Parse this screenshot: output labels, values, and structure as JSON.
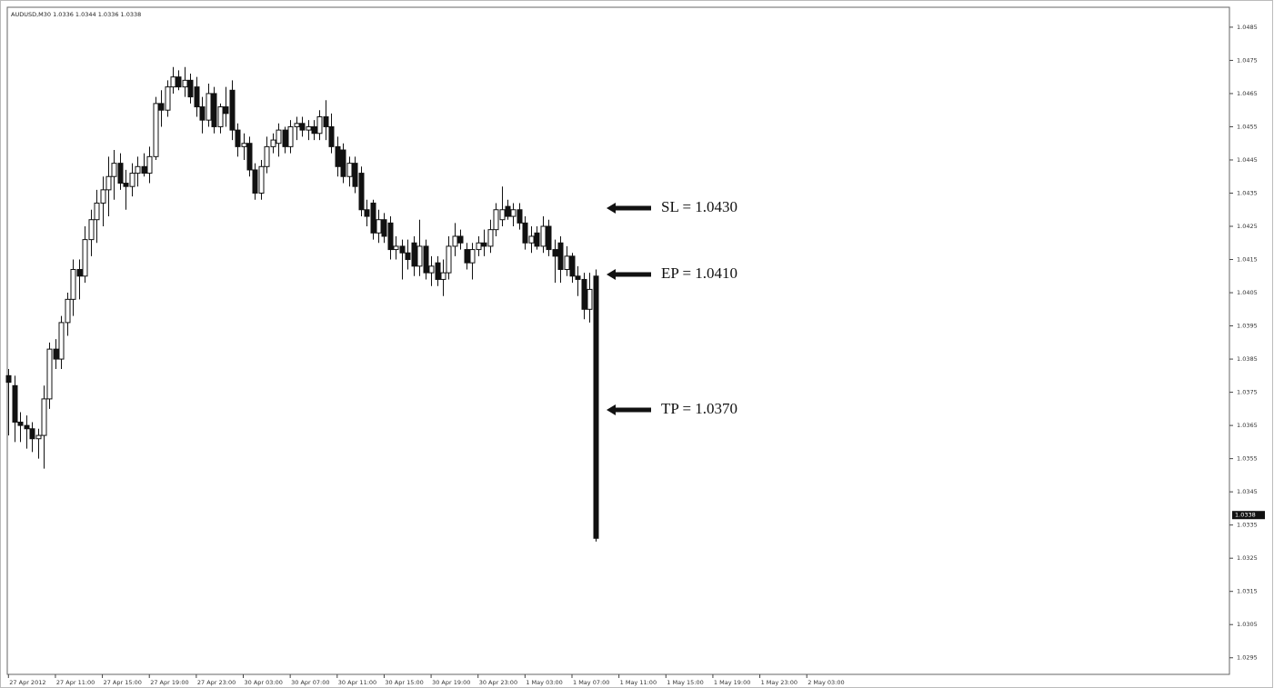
{
  "chart_data": {
    "type": "candlestick",
    "title": "AUDUSD,M30 1.0336 1.0344 1.0336 1.0338",
    "open": [
      1.038,
      1.0377,
      1.0366,
      1.0365,
      1.0364,
      1.0361,
      1.0362,
      1.0373,
      1.0388,
      1.0385,
      1.0396,
      1.0403,
      1.0412,
      1.041,
      1.0421,
      1.0427,
      1.0432,
      1.0436,
      1.044,
      1.0444,
      1.0438,
      1.0437,
      1.0441,
      1.0443,
      1.0441,
      1.0446,
      1.0462,
      1.046,
      1.0467,
      1.047,
      1.0467,
      1.0469,
      1.0467,
      1.0461,
      1.0457,
      1.0465,
      1.0455,
      1.0461,
      1.0466,
      1.0454,
      1.0449,
      1.045,
      1.0442,
      1.0435,
      1.0443,
      1.0449,
      1.045,
      1.0454,
      1.0449,
      1.0455,
      1.0456,
      1.0454,
      1.0455,
      1.0453,
      1.0458,
      1.0455,
      1.0449,
      1.0448,
      1.044,
      1.0444,
      1.0441,
      1.043,
      1.0432,
      1.0423,
      1.0427,
      1.0426,
      1.0418,
      1.0419,
      1.0417,
      1.042,
      1.0413,
      1.0419,
      1.0411,
      1.0414,
      1.0409,
      1.0411,
      1.0419,
      1.0422,
      1.0418,
      1.0414,
      1.0418,
      1.042,
      1.0419,
      1.0424,
      1.0427,
      1.0431,
      1.0428,
      1.043,
      1.0426,
      1.042,
      1.0423,
      1.0419,
      1.0425,
      1.0418,
      1.042,
      1.0412,
      1.0416,
      1.041,
      1.0409,
      1.04,
      1.041
    ],
    "high": [
      1.0382,
      1.038,
      1.0369,
      1.0368,
      1.0366,
      1.0364,
      1.0377,
      1.039,
      1.0391,
      1.0398,
      1.0405,
      1.0415,
      1.0415,
      1.0425,
      1.043,
      1.0436,
      1.044,
      1.0446,
      1.0448,
      1.0447,
      1.0442,
      1.0444,
      1.0446,
      1.0447,
      1.0449,
      1.0464,
      1.0466,
      1.0469,
      1.0473,
      1.0472,
      1.0473,
      1.0471,
      1.047,
      1.0464,
      1.0468,
      1.0467,
      1.0462,
      1.0467,
      1.0469,
      1.0456,
      1.0453,
      1.0452,
      1.0444,
      1.0445,
      1.0452,
      1.0453,
      1.0456,
      1.0455,
      1.0457,
      1.0458,
      1.0458,
      1.0457,
      1.0457,
      1.046,
      1.0463,
      1.0459,
      1.0452,
      1.045,
      1.0446,
      1.0446,
      1.0443,
      1.0433,
      1.0433,
      1.043,
      1.0429,
      1.0428,
      1.0422,
      1.0421,
      1.0421,
      1.0422,
      1.0427,
      1.0421,
      1.0416,
      1.0416,
      1.0415,
      1.0422,
      1.0426,
      1.0424,
      1.042,
      1.042,
      1.0422,
      1.0424,
      1.0427,
      1.0432,
      1.0437,
      1.0433,
      1.0432,
      1.0432,
      1.0428,
      1.0425,
      1.0425,
      1.0428,
      1.0427,
      1.0421,
      1.0422,
      1.0419,
      1.0417,
      1.0413,
      1.0411,
      1.0411,
      1.0412
    ],
    "low": [
      1.0362,
      1.036,
      1.036,
      1.0358,
      1.0357,
      1.0355,
      1.0352,
      1.037,
      1.0382,
      1.0382,
      1.0392,
      1.0398,
      1.0403,
      1.0408,
      1.0416,
      1.042,
      1.0425,
      1.0428,
      1.0433,
      1.0436,
      1.043,
      1.0434,
      1.0437,
      1.044,
      1.0438,
      1.0445,
      1.0455,
      1.0458,
      1.0465,
      1.0466,
      1.0464,
      1.0462,
      1.0458,
      1.0453,
      1.0455,
      1.0453,
      1.0453,
      1.0455,
      1.0451,
      1.0446,
      1.0445,
      1.044,
      1.0433,
      1.0433,
      1.0441,
      1.0447,
      1.0446,
      1.0447,
      1.0447,
      1.0451,
      1.0452,
      1.0451,
      1.0451,
      1.0451,
      1.0451,
      1.0447,
      1.044,
      1.0438,
      1.0437,
      1.0435,
      1.0428,
      1.0425,
      1.0421,
      1.042,
      1.042,
      1.0415,
      1.0415,
      1.0409,
      1.0412,
      1.041,
      1.041,
      1.0409,
      1.0407,
      1.0407,
      1.0404,
      1.0409,
      1.0416,
      1.0418,
      1.0412,
      1.0409,
      1.0416,
      1.0416,
      1.0417,
      1.0422,
      1.0425,
      1.0427,
      1.0425,
      1.0424,
      1.0418,
      1.0417,
      1.0418,
      1.0417,
      1.0416,
      1.0408,
      1.0408,
      1.041,
      1.0408,
      1.0404,
      1.0397,
      1.0396,
      1.033
    ],
    "close": [
      1.0378,
      1.0366,
      1.0365,
      1.0364,
      1.0361,
      1.0362,
      1.0373,
      1.0388,
      1.0385,
      1.0396,
      1.0403,
      1.0412,
      1.041,
      1.0421,
      1.0427,
      1.0432,
      1.0436,
      1.044,
      1.0444,
      1.0438,
      1.0437,
      1.0441,
      1.0443,
      1.0441,
      1.0446,
      1.0462,
      1.046,
      1.0467,
      1.047,
      1.0467,
      1.0469,
      1.0464,
      1.0461,
      1.0457,
      1.0465,
      1.0455,
      1.0461,
      1.0459,
      1.0454,
      1.0449,
      1.045,
      1.0442,
      1.0435,
      1.0443,
      1.0449,
      1.0451,
      1.0454,
      1.0449,
      1.0455,
      1.0456,
      1.0454,
      1.0455,
      1.0453,
      1.0458,
      1.0455,
      1.0449,
      1.0443,
      1.044,
      1.0444,
      1.0437,
      1.043,
      1.0428,
      1.0423,
      1.0427,
      1.0422,
      1.0418,
      1.0419,
      1.0417,
      1.0415,
      1.0413,
      1.0419,
      1.0411,
      1.0413,
      1.0409,
      1.0411,
      1.0419,
      1.0422,
      1.042,
      1.0414,
      1.0418,
      1.042,
      1.0419,
      1.0424,
      1.043,
      1.043,
      1.0428,
      1.043,
      1.0426,
      1.042,
      1.0422,
      1.0419,
      1.0425,
      1.0418,
      1.0416,
      1.0412,
      1.0416,
      1.041,
      1.0409,
      1.04,
      1.0406,
      1.0331
    ],
    "up_color": "#ffffff",
    "down_color": "#111111",
    "outline_color": "#111111",
    "last_price": 1.0338,
    "xlim": [
      -0.2,
      208
    ],
    "xticks": [
      {
        "value": 0,
        "label": "27 Apr 2012"
      },
      {
        "value": 8,
        "label": "27 Apr 11:00"
      },
      {
        "value": 16,
        "label": "27 Apr 15:00"
      },
      {
        "value": 24,
        "label": "27 Apr 19:00"
      },
      {
        "value": 32,
        "label": "27 Apr 23:00"
      },
      {
        "value": 40,
        "label": "30 Apr 03:00"
      },
      {
        "value": 48,
        "label": "30 Apr 07:00"
      },
      {
        "value": 56,
        "label": "30 Apr 11:00"
      },
      {
        "value": 64,
        "label": "30 Apr 15:00"
      },
      {
        "value": 72,
        "label": "30 Apr 19:00"
      },
      {
        "value": 80,
        "label": "30 Apr 23:00"
      },
      {
        "value": 88,
        "label": "1 May 03:00"
      },
      {
        "value": 96,
        "label": "1 May 07:00"
      },
      {
        "value": 104,
        "label": "1 May 11:00"
      },
      {
        "value": 112,
        "label": "1 May 15:00"
      },
      {
        "value": 120,
        "label": "1 May 19:00"
      },
      {
        "value": 128,
        "label": "1 May 23:00"
      },
      {
        "value": 136,
        "label": "2 May 03:00"
      }
    ],
    "ylim": [
      1.029,
      1.0491
    ],
    "yticks": [
      1.0485,
      1.0475,
      1.0465,
      1.0455,
      1.0445,
      1.0435,
      1.0425,
      1.0415,
      1.0405,
      1.0395,
      1.0385,
      1.0375,
      1.0365,
      1.0355,
      1.0345,
      1.0335,
      1.0325,
      1.0315,
      1.0305,
      1.0295
    ],
    "annotations": [
      "SL = 1.0430",
      "EP = 1.0410",
      "TP = 1.0370"
    ]
  }
}
